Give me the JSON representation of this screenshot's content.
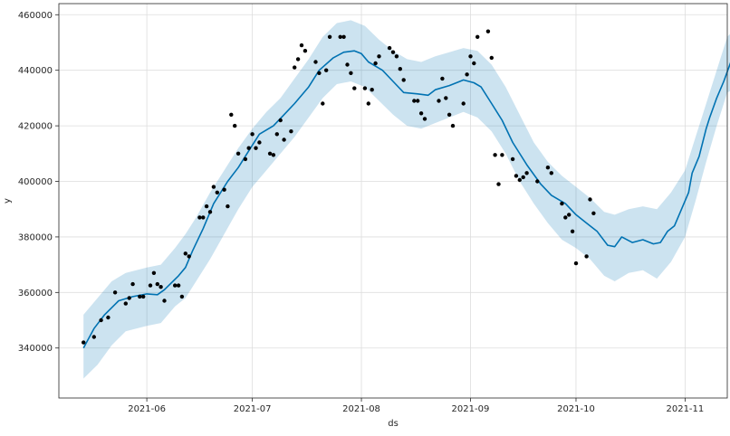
{
  "chart_data": {
    "type": "line",
    "title": "",
    "xlabel": "ds",
    "ylabel": "y",
    "x_ticks": [
      "2021-06",
      "2021-07",
      "2021-08",
      "2021-09",
      "2021-10",
      "2021-11"
    ],
    "y_ticks": [
      "340000",
      "360000",
      "380000",
      "400000",
      "420000",
      "440000",
      "460000"
    ],
    "xlim": [
      "2021-05-07",
      "2021-11-13"
    ],
    "ylim": [
      322000,
      464000
    ],
    "grid": true,
    "legend": "none",
    "colors": {
      "forecast_line": "#0072B2",
      "interval_fill": "#0072B2",
      "observed_points": "#000000"
    },
    "series": [
      {
        "role": "yhat",
        "points": [
          [
            "2021-05-14",
            340000
          ],
          [
            "2021-05-17",
            347000
          ],
          [
            "2021-05-20",
            352000
          ],
          [
            "2021-05-24",
            357000
          ],
          [
            "2021-05-28",
            358500
          ],
          [
            "2021-06-01",
            359500
          ],
          [
            "2021-06-04",
            359200
          ],
          [
            "2021-06-06",
            361000
          ],
          [
            "2021-06-10",
            366000
          ],
          [
            "2021-06-12",
            369000
          ],
          [
            "2021-06-14",
            375000
          ],
          [
            "2021-06-17",
            383000
          ],
          [
            "2021-06-20",
            392000
          ],
          [
            "2021-06-24",
            400000
          ],
          [
            "2021-06-27",
            405000
          ],
          [
            "2021-06-30",
            411000
          ],
          [
            "2021-07-03",
            417000
          ],
          [
            "2021-07-07",
            420000
          ],
          [
            "2021-07-10",
            424000
          ],
          [
            "2021-07-13",
            428000
          ],
          [
            "2021-07-17",
            434000
          ],
          [
            "2021-07-20",
            440000
          ],
          [
            "2021-07-24",
            444500
          ],
          [
            "2021-07-27",
            446500
          ],
          [
            "2021-07-30",
            447000
          ],
          [
            "2021-08-01",
            446000
          ],
          [
            "2021-08-03",
            443000
          ],
          [
            "2021-08-07",
            440000
          ],
          [
            "2021-08-10",
            436000
          ],
          [
            "2021-08-13",
            432000
          ],
          [
            "2021-08-17",
            431500
          ],
          [
            "2021-08-20",
            431000
          ],
          [
            "2021-08-22",
            433000
          ],
          [
            "2021-08-26",
            434500
          ],
          [
            "2021-08-30",
            436500
          ],
          [
            "2021-09-02",
            435500
          ],
          [
            "2021-09-04",
            434000
          ],
          [
            "2021-09-07",
            428000
          ],
          [
            "2021-09-10",
            422000
          ],
          [
            "2021-09-13",
            414000
          ],
          [
            "2021-09-17",
            406000
          ],
          [
            "2021-09-21",
            399000
          ],
          [
            "2021-09-24",
            395000
          ],
          [
            "2021-09-28",
            392000
          ],
          [
            "2021-10-01",
            388000
          ],
          [
            "2021-10-04",
            385000
          ],
          [
            "2021-10-07",
            382000
          ],
          [
            "2021-10-10",
            377000
          ],
          [
            "2021-10-12",
            376500
          ],
          [
            "2021-10-14",
            380000
          ],
          [
            "2021-10-17",
            378000
          ],
          [
            "2021-10-20",
            379000
          ],
          [
            "2021-10-23",
            377500
          ],
          [
            "2021-10-25",
            378000
          ],
          [
            "2021-10-27",
            382000
          ],
          [
            "2021-10-29",
            384000
          ],
          [
            "2021-10-31",
            390000
          ],
          [
            "2021-11-02",
            396000
          ],
          [
            "2021-11-03",
            403000
          ],
          [
            "2021-11-05",
            409000
          ],
          [
            "2021-11-07",
            419000
          ],
          [
            "2021-11-08",
            423000
          ],
          [
            "2021-11-10",
            430000
          ],
          [
            "2021-11-12",
            436000
          ],
          [
            "2021-11-14",
            443000
          ],
          [
            "2021-11-15",
            440000
          ],
          [
            "2021-11-16",
            443000
          ]
        ]
      },
      {
        "role": "yhat_upper",
        "points": [
          [
            "2021-05-14",
            352000
          ],
          [
            "2021-05-18",
            358000
          ],
          [
            "2021-05-22",
            364000
          ],
          [
            "2021-05-26",
            367000
          ],
          [
            "2021-06-01",
            369000
          ],
          [
            "2021-06-05",
            370000
          ],
          [
            "2021-06-09",
            376000
          ],
          [
            "2021-06-12",
            381000
          ],
          [
            "2021-06-15",
            387000
          ],
          [
            "2021-06-19",
            396000
          ],
          [
            "2021-06-23",
            404000
          ],
          [
            "2021-06-27",
            412000
          ],
          [
            "2021-07-01",
            419000
          ],
          [
            "2021-07-05",
            425000
          ],
          [
            "2021-07-09",
            430000
          ],
          [
            "2021-07-13",
            437000
          ],
          [
            "2021-07-17",
            444000
          ],
          [
            "2021-07-21",
            452000
          ],
          [
            "2021-07-25",
            457000
          ],
          [
            "2021-07-29",
            458000
          ],
          [
            "2021-08-02",
            456000
          ],
          [
            "2021-08-06",
            451000
          ],
          [
            "2021-08-10",
            447000
          ],
          [
            "2021-08-14",
            444000
          ],
          [
            "2021-08-18",
            443000
          ],
          [
            "2021-08-22",
            445000
          ],
          [
            "2021-08-26",
            446500
          ],
          [
            "2021-08-30",
            448000
          ],
          [
            "2021-09-03",
            447000
          ],
          [
            "2021-09-07",
            442000
          ],
          [
            "2021-09-11",
            434000
          ],
          [
            "2021-09-15",
            424000
          ],
          [
            "2021-09-19",
            414000
          ],
          [
            "2021-09-23",
            407000
          ],
          [
            "2021-09-27",
            402000
          ],
          [
            "2021-10-01",
            398000
          ],
          [
            "2021-10-05",
            394000
          ],
          [
            "2021-10-09",
            389000
          ],
          [
            "2021-10-12",
            388000
          ],
          [
            "2021-10-16",
            390000
          ],
          [
            "2021-10-20",
            391000
          ],
          [
            "2021-10-24",
            390000
          ],
          [
            "2021-10-28",
            396000
          ],
          [
            "2021-11-01",
            404000
          ],
          [
            "2021-11-04",
            416000
          ],
          [
            "2021-11-07",
            428000
          ],
          [
            "2021-11-10",
            440000
          ],
          [
            "2021-11-13",
            452000
          ],
          [
            "2021-11-16",
            456000
          ]
        ]
      },
      {
        "role": "yhat_lower",
        "points": [
          [
            "2021-05-14",
            329000
          ],
          [
            "2021-05-18",
            334000
          ],
          [
            "2021-05-22",
            341000
          ],
          [
            "2021-05-26",
            346000
          ],
          [
            "2021-06-01",
            348000
          ],
          [
            "2021-06-05",
            349000
          ],
          [
            "2021-06-09",
            355000
          ],
          [
            "2021-06-12",
            358000
          ],
          [
            "2021-06-15",
            364000
          ],
          [
            "2021-06-19",
            372000
          ],
          [
            "2021-06-23",
            381000
          ],
          [
            "2021-06-27",
            390000
          ],
          [
            "2021-07-01",
            398000
          ],
          [
            "2021-07-05",
            404000
          ],
          [
            "2021-07-09",
            410000
          ],
          [
            "2021-07-13",
            416000
          ],
          [
            "2021-07-17",
            423000
          ],
          [
            "2021-07-21",
            430000
          ],
          [
            "2021-07-25",
            435000
          ],
          [
            "2021-07-29",
            436000
          ],
          [
            "2021-08-02",
            434000
          ],
          [
            "2021-08-06",
            429000
          ],
          [
            "2021-08-10",
            424000
          ],
          [
            "2021-08-14",
            420000
          ],
          [
            "2021-08-18",
            419000
          ],
          [
            "2021-08-22",
            421000
          ],
          [
            "2021-08-26",
            423000
          ],
          [
            "2021-08-30",
            425000
          ],
          [
            "2021-09-03",
            423000
          ],
          [
            "2021-09-07",
            418000
          ],
          [
            "2021-09-11",
            410000
          ],
          [
            "2021-09-15",
            400000
          ],
          [
            "2021-09-19",
            392000
          ],
          [
            "2021-09-23",
            385000
          ],
          [
            "2021-09-27",
            379000
          ],
          [
            "2021-10-01",
            376000
          ],
          [
            "2021-10-05",
            372000
          ],
          [
            "2021-10-09",
            366000
          ],
          [
            "2021-10-12",
            364000
          ],
          [
            "2021-10-16",
            367000
          ],
          [
            "2021-10-20",
            368000
          ],
          [
            "2021-10-24",
            365000
          ],
          [
            "2021-10-28",
            371000
          ],
          [
            "2021-11-01",
            380000
          ],
          [
            "2021-11-04",
            393000
          ],
          [
            "2021-11-07",
            407000
          ],
          [
            "2021-11-10",
            420000
          ],
          [
            "2021-11-13",
            432000
          ],
          [
            "2021-11-16",
            434000
          ]
        ]
      },
      {
        "role": "observed",
        "points": [
          [
            "2021-05-14",
            342000
          ],
          [
            "2021-05-17",
            344000
          ],
          [
            "2021-05-19",
            350000
          ],
          [
            "2021-05-21",
            351000
          ],
          [
            "2021-05-23",
            360000
          ],
          [
            "2021-05-26",
            356000
          ],
          [
            "2021-05-27",
            358000
          ],
          [
            "2021-05-28",
            363000
          ],
          [
            "2021-05-30",
            358500
          ],
          [
            "2021-05-31",
            358500
          ],
          [
            "2021-06-02",
            362500
          ],
          [
            "2021-06-03",
            367000
          ],
          [
            "2021-06-04",
            363000
          ],
          [
            "2021-06-05",
            362000
          ],
          [
            "2021-06-06",
            357000
          ],
          [
            "2021-06-09",
            362500
          ],
          [
            "2021-06-10",
            362500
          ],
          [
            "2021-06-11",
            358500
          ],
          [
            "2021-06-12",
            374000
          ],
          [
            "2021-06-13",
            373000
          ],
          [
            "2021-06-16",
            387000
          ],
          [
            "2021-06-17",
            387000
          ],
          [
            "2021-06-18",
            391000
          ],
          [
            "2021-06-19",
            389000
          ],
          [
            "2021-06-20",
            398000
          ],
          [
            "2021-06-21",
            396000
          ],
          [
            "2021-06-23",
            397000
          ],
          [
            "2021-06-24",
            391000
          ],
          [
            "2021-06-25",
            424000
          ],
          [
            "2021-06-26",
            420000
          ],
          [
            "2021-06-27",
            410000
          ],
          [
            "2021-06-29",
            408000
          ],
          [
            "2021-06-30",
            412000
          ],
          [
            "2021-07-01",
            417000
          ],
          [
            "2021-07-02",
            412000
          ],
          [
            "2021-07-03",
            414000
          ],
          [
            "2021-07-06",
            410000
          ],
          [
            "2021-07-07",
            409500
          ],
          [
            "2021-07-08",
            417000
          ],
          [
            "2021-07-09",
            422000
          ],
          [
            "2021-07-10",
            415000
          ],
          [
            "2021-07-12",
            418000
          ],
          [
            "2021-07-13",
            441000
          ],
          [
            "2021-07-14",
            444000
          ],
          [
            "2021-07-15",
            449000
          ],
          [
            "2021-07-16",
            447000
          ],
          [
            "2021-07-19",
            443000
          ],
          [
            "2021-07-20",
            439000
          ],
          [
            "2021-07-21",
            428000
          ],
          [
            "2021-07-22",
            440000
          ],
          [
            "2021-07-23",
            452000
          ],
          [
            "2021-07-26",
            452000
          ],
          [
            "2021-07-27",
            452000
          ],
          [
            "2021-07-28",
            442000
          ],
          [
            "2021-07-29",
            439000
          ],
          [
            "2021-07-30",
            433500
          ],
          [
            "2021-08-02",
            433500
          ],
          [
            "2021-08-03",
            428000
          ],
          [
            "2021-08-04",
            433000
          ],
          [
            "2021-08-05",
            442500
          ],
          [
            "2021-08-06",
            445000
          ],
          [
            "2021-08-09",
            448000
          ],
          [
            "2021-08-10",
            446500
          ],
          [
            "2021-08-11",
            445000
          ],
          [
            "2021-08-12",
            440500
          ],
          [
            "2021-08-13",
            436500
          ],
          [
            "2021-08-16",
            429000
          ],
          [
            "2021-08-17",
            429000
          ],
          [
            "2021-08-18",
            424500
          ],
          [
            "2021-08-19",
            422500
          ],
          [
            "2021-08-23",
            429000
          ],
          [
            "2021-08-24",
            437000
          ],
          [
            "2021-08-25",
            430000
          ],
          [
            "2021-08-26",
            424000
          ],
          [
            "2021-08-27",
            420000
          ],
          [
            "2021-08-30",
            428000
          ],
          [
            "2021-08-31",
            438500
          ],
          [
            "2021-09-01",
            445000
          ],
          [
            "2021-09-02",
            442500
          ],
          [
            "2021-09-03",
            452000
          ],
          [
            "2021-09-06",
            454000
          ],
          [
            "2021-09-07",
            444500
          ],
          [
            "2021-09-08",
            409500
          ],
          [
            "2021-09-09",
            399000
          ],
          [
            "2021-09-10",
            409500
          ],
          [
            "2021-09-13",
            408000
          ],
          [
            "2021-09-14",
            402000
          ],
          [
            "2021-09-15",
            400500
          ],
          [
            "2021-09-16",
            401500
          ],
          [
            "2021-09-17",
            403000
          ],
          [
            "2021-09-20",
            400000
          ],
          [
            "2021-09-23",
            405000
          ],
          [
            "2021-09-24",
            403000
          ],
          [
            "2021-09-27",
            392000
          ],
          [
            "2021-09-28",
            387000
          ],
          [
            "2021-09-29",
            388000
          ],
          [
            "2021-09-30",
            382000
          ],
          [
            "2021-10-01",
            370500
          ],
          [
            "2021-10-04",
            373000
          ],
          [
            "2021-10-05",
            393500
          ],
          [
            "2021-10-06",
            388500
          ]
        ]
      }
    ]
  }
}
